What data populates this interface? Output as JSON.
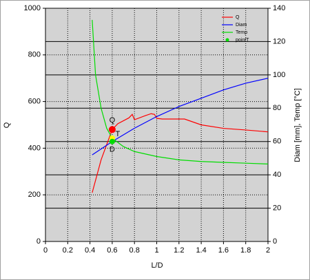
{
  "chart_data": {
    "type": "line",
    "xlabel": "L/D",
    "ylabel": "Q",
    "y2label": "Diam [mm], Temp [°C]",
    "xlim": [
      0,
      2
    ],
    "xticks": [
      0,
      0.2,
      0.4,
      0.6,
      0.8,
      1,
      1.2,
      1.4,
      1.6,
      1.8,
      2
    ],
    "ylim": [
      0,
      1000
    ],
    "yticks": [
      0,
      200,
      400,
      600,
      800,
      1000
    ],
    "y2lim": [
      0,
      140
    ],
    "y2ticks": [
      0,
      20,
      40,
      60,
      80,
      100,
      120,
      140
    ],
    "grid": true,
    "legend": "upper right",
    "series": [
      {
        "name": "Q",
        "color": "#ff0000",
        "axis": "y",
        "x": [
          0.42,
          0.5,
          0.6,
          0.65,
          0.75,
          0.78,
          0.8,
          0.9,
          0.95,
          0.98,
          1.0,
          1.05,
          1.25,
          1.4,
          1.6,
          1.8,
          2.0
        ],
        "values": [
          209,
          350,
          480,
          505,
          530,
          545,
          522,
          540,
          548,
          545,
          528,
          525,
          525,
          500,
          485,
          478,
          470
        ]
      },
      {
        "name": "Diam",
        "color": "#0000ff",
        "axis": "y2",
        "x": [
          0.42,
          0.6,
          0.8,
          1.0,
          1.2,
          1.4,
          1.6,
          1.8,
          2.0
        ],
        "values": [
          52,
          60,
          68,
          75,
          81,
          86,
          91,
          95,
          98
        ]
      },
      {
        "name": "Temp",
        "color": "#00dd00",
        "axis": "y2",
        "x": [
          0.42,
          0.45,
          0.5,
          0.55,
          0.6,
          0.7,
          0.8,
          1.0,
          1.2,
          1.4,
          1.6,
          1.8,
          2.0
        ],
        "values": [
          133,
          100,
          80,
          68,
          62,
          57,
          54,
          51,
          49,
          48,
          47.5,
          47,
          46.5
        ]
      }
    ],
    "points": {
      "name": "pointT",
      "color": "#00dd00",
      "items": [
        {
          "label": "Q",
          "x": 0.6,
          "y": 480,
          "axis": "y",
          "color": "#ff0000"
        },
        {
          "label": "T",
          "x": 0.6,
          "y": 62,
          "axis": "y2",
          "color": "#ffff00"
        },
        {
          "label": "D",
          "x": 0.6,
          "y": 60,
          "axis": "y2",
          "color": "#00dd00"
        }
      ]
    }
  }
}
